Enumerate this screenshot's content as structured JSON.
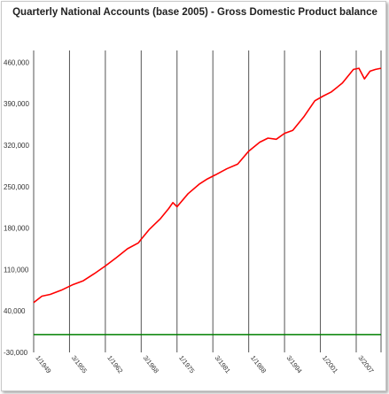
{
  "chart_data": {
    "type": "line",
    "title": "Quarterly National Accounts (base 2005) - Gross Domestic Product balance",
    "xlabel": "",
    "ylabel": "",
    "ylim": [
      -30000,
      480000
    ],
    "yticks": [
      "460,000",
      "390,000",
      "320,000",
      "250,000",
      "180,000",
      "110,000",
      "40,000",
      "-30,000"
    ],
    "ytick_values": [
      460000,
      390000,
      320000,
      250000,
      180000,
      110000,
      40000,
      -30000
    ],
    "xticks": [
      "1/1949",
      "3/1955",
      "1/1962",
      "3/1968",
      "1/1975",
      "3/1981",
      "1/1988",
      "3/1994",
      "1/2001",
      "3/2007"
    ],
    "xtick_values": [
      1949.0,
      1955.5,
      1962.0,
      1968.5,
      1975.0,
      1981.5,
      1988.0,
      1994.5,
      2001.0,
      2007.5
    ],
    "xlim": [
      1949.0,
      2012.0
    ],
    "grid": "vertical",
    "colors": {
      "gdp": "#ff0000",
      "baseline": "#008000",
      "grid": "#555555"
    },
    "series": [
      {
        "color": "#ff0000",
        "x": [
          1949.0,
          1950.5,
          1952.0,
          1954.0,
          1956.0,
          1958.0,
          1960.0,
          1962.0,
          1964.0,
          1966.0,
          1968.0,
          1968.5,
          1970.0,
          1972.0,
          1973.5,
          1974.25,
          1975.0,
          1977.0,
          1979.0,
          1980.5,
          1982.0,
          1984.0,
          1986.0,
          1988.0,
          1990.0,
          1991.5,
          1993.0,
          1994.5,
          1996.0,
          1998.0,
          2000.0,
          2001.5,
          2003.0,
          2005.0,
          2007.0,
          2008.0,
          2009.0,
          2010.0,
          2011.0,
          2012.0
        ],
        "y": [
          54000,
          65000,
          68000,
          75000,
          84000,
          91000,
          103000,
          116000,
          130000,
          145000,
          155000,
          161000,
          178000,
          196000,
          213000,
          223000,
          216000,
          238000,
          254000,
          263000,
          270000,
          280000,
          288000,
          310000,
          325000,
          332000,
          330000,
          340000,
          345000,
          368000,
          395000,
          403000,
          410000,
          425000,
          448000,
          450000,
          432000,
          445000,
          448000,
          450000
        ]
      },
      {
        "color": "#008000",
        "x": [
          1949.0,
          2012.0
        ],
        "y": [
          0,
          0
        ]
      }
    ]
  }
}
